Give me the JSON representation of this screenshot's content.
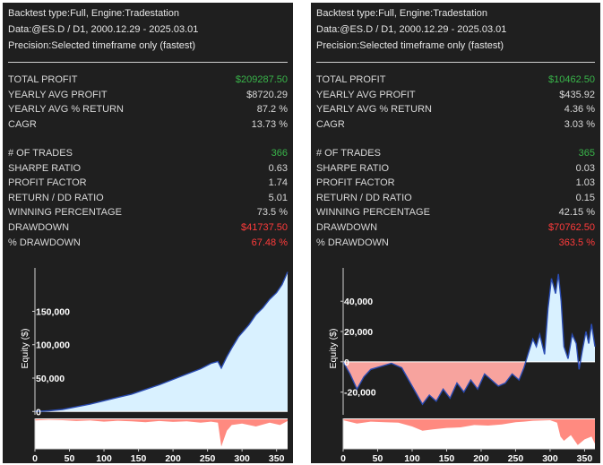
{
  "panels": [
    {
      "header": {
        "line1": "Backtest type:Full, Engine:Tradestation",
        "line2": "Data:@ES.D / D1, 2000.12.29 - 2025.03.01",
        "line3": "Precision:Selected timeframe only (fastest)"
      },
      "metrics1": [
        {
          "label": "TOTAL PROFIT",
          "value": "$209287.50",
          "color": "#39b54a"
        },
        {
          "label": "YEARLY AVG PROFIT",
          "value": "$8720.29",
          "color": "#d8d8d8"
        },
        {
          "label": "YEARLY AVG % RETURN",
          "value": "87.2 %",
          "color": "#d8d8d8"
        },
        {
          "label": "CAGR",
          "value": "13.73 %",
          "color": "#d8d8d8"
        }
      ],
      "metrics2": [
        {
          "label": "# OF TRADES",
          "value": "366",
          "color": "#39b54a"
        },
        {
          "label": "SHARPE RATIO",
          "value": "0.63",
          "color": "#d8d8d8"
        },
        {
          "label": "PROFIT FACTOR",
          "value": "1.74",
          "color": "#d8d8d8"
        },
        {
          "label": "RETURN / DD RATIO",
          "value": "5.01",
          "color": "#d8d8d8"
        },
        {
          "label": "WINNING PERCENTAGE",
          "value": "73.5 %",
          "color": "#d8d8d8"
        },
        {
          "label": "DRAWDOWN",
          "value": "$41737.50",
          "color": "#ff3b3b"
        },
        {
          "label": "% DRAWDOWN",
          "value": "67.48 %",
          "color": "#ff3b3b"
        }
      ],
      "chart_data": {
        "type": "area",
        "ylabel": "Equity ($)",
        "xlim": [
          0,
          366
        ],
        "ylim": [
          -5000,
          215000
        ],
        "y_ticks": [
          0,
          50000,
          100000,
          150000
        ],
        "y_tick_labels": [
          "0",
          "50,000",
          "100,000",
          "150,000"
        ],
        "x_ticks": [
          0,
          50,
          100,
          150,
          200,
          250,
          300,
          350
        ],
        "x_tick_labels": [
          "0",
          "50",
          "100",
          "150",
          "200",
          "250",
          "300",
          "350"
        ],
        "equity_points": [
          [
            0,
            0
          ],
          [
            20,
            1000
          ],
          [
            40,
            3000
          ],
          [
            60,
            7000
          ],
          [
            80,
            11000
          ],
          [
            100,
            16000
          ],
          [
            120,
            21000
          ],
          [
            140,
            26000
          ],
          [
            160,
            33000
          ],
          [
            180,
            40000
          ],
          [
            200,
            48000
          ],
          [
            220,
            56000
          ],
          [
            240,
            64000
          ],
          [
            255,
            72000
          ],
          [
            265,
            75000
          ],
          [
            270,
            65000
          ],
          [
            278,
            82000
          ],
          [
            285,
            95000
          ],
          [
            295,
            112000
          ],
          [
            310,
            130000
          ],
          [
            320,
            145000
          ],
          [
            330,
            155000
          ],
          [
            340,
            168000
          ],
          [
            350,
            178000
          ],
          [
            358,
            190000
          ],
          [
            366,
            209000
          ]
        ],
        "drawdown_points": [
          [
            0,
            -4
          ],
          [
            20,
            -2
          ],
          [
            40,
            -3
          ],
          [
            60,
            -6
          ],
          [
            80,
            -4
          ],
          [
            100,
            -8
          ],
          [
            120,
            -5
          ],
          [
            140,
            -7
          ],
          [
            160,
            -10
          ],
          [
            180,
            -6
          ],
          [
            200,
            -9
          ],
          [
            220,
            -7
          ],
          [
            240,
            -12
          ],
          [
            255,
            -8
          ],
          [
            265,
            -12
          ],
          [
            270,
            -95
          ],
          [
            278,
            -40
          ],
          [
            285,
            -20
          ],
          [
            300,
            -15
          ],
          [
            320,
            -25
          ],
          [
            340,
            -12
          ],
          [
            355,
            -20
          ],
          [
            366,
            -6
          ]
        ],
        "colors": {
          "equity_fill": "#d9f1ff",
          "equity_line": "#2a4cb3",
          "drawdown": "#ff8a80"
        }
      }
    },
    {
      "header": {
        "line1": "Backtest type:Full, Engine:Tradestation",
        "line2": "Data:@ES.D / D1, 2000.12.29 - 2025.03.01",
        "line3": "Precision:Selected timeframe only (fastest)"
      },
      "metrics1": [
        {
          "label": "TOTAL PROFIT",
          "value": "$10462.50",
          "color": "#39b54a"
        },
        {
          "label": "YEARLY AVG PROFIT",
          "value": "$435.92",
          "color": "#d8d8d8"
        },
        {
          "label": "YEARLY AVG % RETURN",
          "value": "4.36 %",
          "color": "#d8d8d8"
        },
        {
          "label": "CAGR",
          "value": "3.03 %",
          "color": "#d8d8d8"
        }
      ],
      "metrics2": [
        {
          "label": "# OF TRADES",
          "value": "365",
          "color": "#39b54a"
        },
        {
          "label": "SHARPE RATIO",
          "value": "0.03",
          "color": "#d8d8d8"
        },
        {
          "label": "PROFIT FACTOR",
          "value": "1.03",
          "color": "#d8d8d8"
        },
        {
          "label": "RETURN / DD RATIO",
          "value": "0.15",
          "color": "#d8d8d8"
        },
        {
          "label": "WINNING PERCENTAGE",
          "value": "42.15 %",
          "color": "#d8d8d8"
        },
        {
          "label": "DRAWDOWN",
          "value": "$70762.50",
          "color": "#ff3b3b"
        },
        {
          "label": "% DRAWDOWN",
          "value": "363.5 %",
          "color": "#ff3b3b"
        }
      ],
      "chart_data": {
        "type": "area",
        "ylabel": "Equity ($)",
        "xlim": [
          0,
          365
        ],
        "ylim": [
          -35000,
          62000
        ],
        "y_ticks": [
          -20000,
          0,
          20000,
          40000
        ],
        "y_tick_labels": [
          "-20,000",
          "0",
          "20,000",
          "40,000"
        ],
        "x_ticks": [
          0,
          50,
          100,
          150,
          200,
          250,
          300,
          350
        ],
        "x_tick_labels": [
          "0",
          "50",
          "100",
          "150",
          "200",
          "250",
          "300",
          "350"
        ],
        "equity_points": [
          [
            0,
            0
          ],
          [
            10,
            -8000
          ],
          [
            20,
            -18000
          ],
          [
            30,
            -10000
          ],
          [
            40,
            -5000
          ],
          [
            55,
            -3000
          ],
          [
            70,
            -1000
          ],
          [
            85,
            -4000
          ],
          [
            95,
            -12000
          ],
          [
            105,
            -20000
          ],
          [
            115,
            -28000
          ],
          [
            125,
            -22000
          ],
          [
            135,
            -26000
          ],
          [
            145,
            -18000
          ],
          [
            155,
            -24000
          ],
          [
            165,
            -14000
          ],
          [
            175,
            -20000
          ],
          [
            185,
            -12000
          ],
          [
            195,
            -18000
          ],
          [
            205,
            -8000
          ],
          [
            215,
            -12000
          ],
          [
            225,
            -16000
          ],
          [
            235,
            -14000
          ],
          [
            245,
            -8000
          ],
          [
            255,
            -12000
          ],
          [
            262,
            -4000
          ],
          [
            268,
            5000
          ],
          [
            275,
            15000
          ],
          [
            280,
            10000
          ],
          [
            285,
            18000
          ],
          [
            292,
            5000
          ],
          [
            297,
            35000
          ],
          [
            302,
            55000
          ],
          [
            308,
            45000
          ],
          [
            312,
            58000
          ],
          [
            316,
            40000
          ],
          [
            320,
            10000
          ],
          [
            326,
            2000
          ],
          [
            332,
            18000
          ],
          [
            338,
            12000
          ],
          [
            342,
            -5000
          ],
          [
            347,
            8000
          ],
          [
            352,
            20000
          ],
          [
            356,
            12000
          ],
          [
            360,
            25000
          ],
          [
            365,
            10000
          ]
        ],
        "drawdown_points": [
          [
            0,
            -3
          ],
          [
            20,
            -15
          ],
          [
            40,
            -8
          ],
          [
            60,
            -10
          ],
          [
            80,
            -12
          ],
          [
            100,
            -25
          ],
          [
            115,
            -40
          ],
          [
            130,
            -35
          ],
          [
            150,
            -30
          ],
          [
            170,
            -28
          ],
          [
            190,
            -20
          ],
          [
            210,
            -22
          ],
          [
            230,
            -18
          ],
          [
            250,
            -10
          ],
          [
            262,
            -8
          ],
          [
            275,
            -5
          ],
          [
            290,
            -4
          ],
          [
            300,
            -3
          ],
          [
            310,
            -12
          ],
          [
            315,
            -60
          ],
          [
            320,
            -75
          ],
          [
            330,
            -55
          ],
          [
            340,
            -90
          ],
          [
            350,
            -70
          ],
          [
            360,
            -60
          ],
          [
            365,
            -85
          ]
        ],
        "colors": {
          "equity_fill_pos": "#d9f1ff",
          "equity_fill_neg": "#f7a39e",
          "equity_line": "#2a4cb3",
          "drawdown": "#ff8a80"
        }
      }
    }
  ]
}
